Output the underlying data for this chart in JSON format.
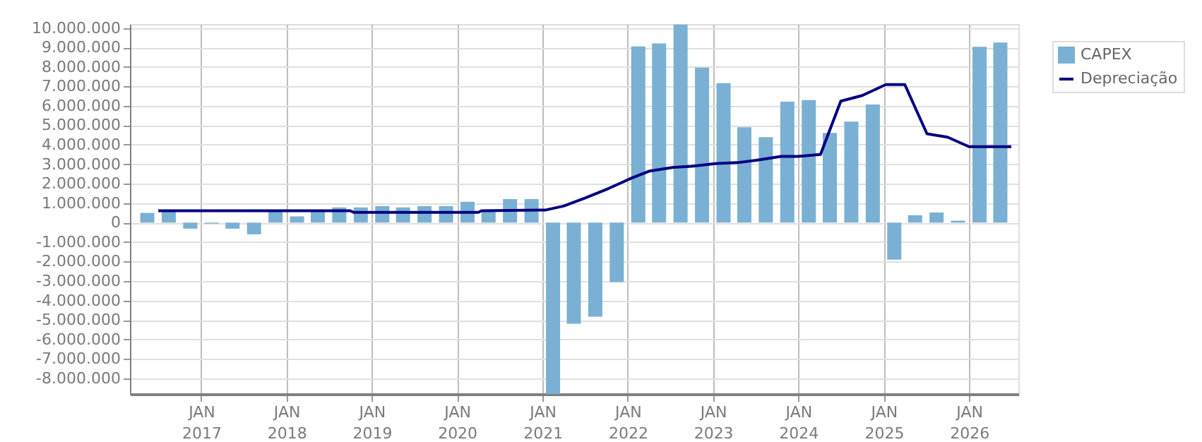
{
  "chart_data": {
    "type": "bar",
    "x": [
      "2016-05-15",
      "2016-08-15",
      "2016-11-15",
      "2017-02-15",
      "2017-05-15",
      "2017-08-15",
      "2017-11-15",
      "2018-02-15",
      "2018-05-15",
      "2018-08-15",
      "2018-11-15",
      "2019-02-15",
      "2019-05-15",
      "2019-08-15",
      "2019-11-15",
      "2020-02-15",
      "2020-05-15",
      "2020-08-15",
      "2020-11-15",
      "2021-02-15",
      "2021-05-15",
      "2021-08-15",
      "2021-11-15",
      "2022-02-15",
      "2022-05-15",
      "2022-08-15",
      "2022-11-15",
      "2023-02-15",
      "2023-05-15",
      "2023-08-15",
      "2023-11-15",
      "2024-02-15",
      "2024-05-15",
      "2024-08-15",
      "2024-11-15",
      "2025-02-15",
      "2025-05-15",
      "2025-08-15",
      "2025-11-15",
      "2026-02-15",
      "2026-05-15"
    ],
    "series": [
      {
        "name": "CAPEX",
        "color": "#7ab0d4",
        "values": [
          500000,
          600000,
          -310000,
          -50000,
          -310000,
          -600000,
          600000,
          320000,
          600000,
          780000,
          780000,
          850000,
          780000,
          850000,
          850000,
          1070000,
          600000,
          1210000,
          1210000,
          -8800000,
          -5190000,
          -4830000,
          -3050000,
          9050000,
          9200000,
          10170000,
          7960000,
          7160000,
          4900000,
          4390000,
          6210000,
          6290000,
          4610000,
          5190000,
          6070000,
          -1900000,
          380000,
          520000,
          100000,
          9030000,
          9250000
        ]
      },
      {
        "name": "Depreciação",
        "type": "line",
        "color": "#000080",
        "x": [
          "2016-07-01",
          "2018-10-01",
          "2018-10-15",
          "2020-04-01",
          "2020-04-15",
          "2021-01-15",
          "2021-04-01",
          "2021-07-01",
          "2021-10-10",
          "2022-01-20",
          "2022-04-05",
          "2022-07-15",
          "2022-10-01",
          "2023-01-10",
          "2023-04-15",
          "2023-07-05",
          "2023-10-20",
          "2024-01-01",
          "2024-04-05",
          "2024-07-01",
          "2024-10-01",
          "2025-01-10",
          "2025-04-01",
          "2025-07-05",
          "2025-10-01",
          "2026-01-01",
          "2026-07-01"
        ],
        "values": [
          610000,
          610000,
          530000,
          530000,
          610000,
          650000,
          850000,
          1260000,
          1750000,
          2300000,
          2650000,
          2840000,
          2890000,
          3030000,
          3080000,
          3200000,
          3400000,
          3400000,
          3500000,
          6240000,
          6530000,
          7090000,
          7090000,
          4560000,
          4390000,
          3900000,
          3900000
        ]
      }
    ],
    "xlim": [
      "2016-04-01",
      "2026-07-01"
    ],
    "xticks": [
      {
        "value": "2017-01-01",
        "label": "JAN 2017"
      },
      {
        "value": "2018-01-01",
        "label": "JAN 2018"
      },
      {
        "value": "2019-01-01",
        "label": "JAN 2019"
      },
      {
        "value": "2020-01-01",
        "label": "JAN 2020"
      },
      {
        "value": "2021-01-01",
        "label": "JAN 2021"
      },
      {
        "value": "2022-01-01",
        "label": "JAN 2022"
      },
      {
        "value": "2023-01-01",
        "label": "JAN 2023"
      },
      {
        "value": "2024-01-01",
        "label": "JAN 2024"
      },
      {
        "value": "2025-01-01",
        "label": "JAN 2025"
      },
      {
        "value": "2026-01-01",
        "label": "JAN 2026"
      }
    ],
    "ylim": [
      -8800000,
      10200000
    ],
    "yticks": [
      {
        "value": -8000000,
        "label": "-8.000.000"
      },
      {
        "value": -7000000,
        "label": "-7.000.000"
      },
      {
        "value": -6000000,
        "label": "-6.000.000"
      },
      {
        "value": -5000000,
        "label": "-5.000.000"
      },
      {
        "value": -4000000,
        "label": "-4.000.000"
      },
      {
        "value": -3000000,
        "label": "-3.000.000"
      },
      {
        "value": -2000000,
        "label": "-2.000.000"
      },
      {
        "value": -1000000,
        "label": "-1.000.000"
      },
      {
        "value": 0,
        "label": "0"
      },
      {
        "value": 1000000,
        "label": "1.000.000"
      },
      {
        "value": 2000000,
        "label": "2.000.000"
      },
      {
        "value": 3000000,
        "label": "3.000.000"
      },
      {
        "value": 4000000,
        "label": "4.000.000"
      },
      {
        "value": 5000000,
        "label": "5.000.000"
      },
      {
        "value": 6000000,
        "label": "6.000.000"
      },
      {
        "value": 7000000,
        "label": "7.000.000"
      },
      {
        "value": 8000000,
        "label": "8.000.000"
      },
      {
        "value": 9000000,
        "label": "9.000.000"
      },
      {
        "value": 10000000,
        "label": "10.000.000"
      }
    ],
    "grid": true,
    "legend": "top right"
  }
}
